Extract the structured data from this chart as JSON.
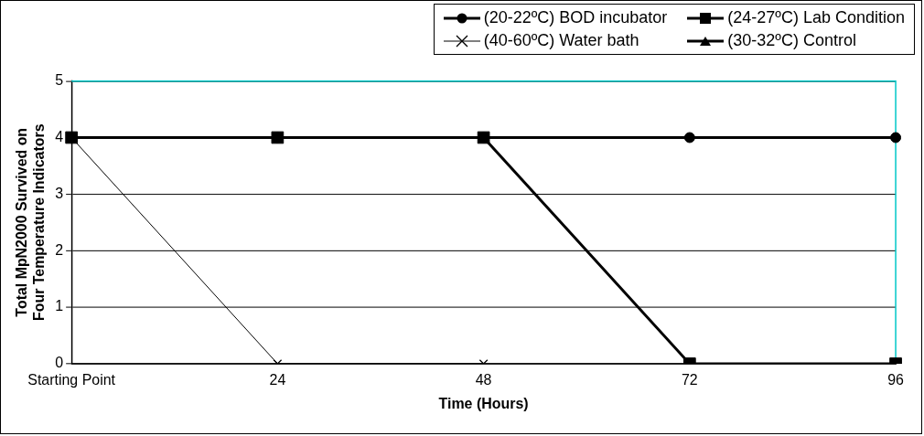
{
  "chart_data": {
    "type": "line",
    "xlabel": "Time (Hours)",
    "ylabel": "Total MpN2000 Survived on Four Temperature Indicators",
    "categories": [
      "Starting Point",
      "24",
      "48",
      "72",
      "96"
    ],
    "ylim": [
      0,
      5
    ],
    "yticks": [
      0,
      1,
      2,
      3,
      4,
      5
    ],
    "grid": "y",
    "legend": "top right",
    "series": [
      {
        "name": "(24-27ºC) Lab Condition",
        "color": "#000000",
        "marker": "square",
        "values": [
          4,
          4,
          4,
          0,
          0
        ]
      },
      {
        "name": "(20-22ºC) BOD incubator",
        "color": "#000000",
        "marker": "circle",
        "values": [
          4,
          4,
          4,
          4,
          4
        ]
      },
      {
        "name": "(40-60ºC) Water bath",
        "color": "#000000",
        "marker": "cross",
        "values": [
          4,
          0,
          0,
          null,
          null
        ]
      },
      {
        "name": "(30-32ºC) Control",
        "color": "#000000",
        "marker": "triangle",
        "values": [
          null,
          null,
          null,
          null,
          null
        ]
      }
    ]
  }
}
